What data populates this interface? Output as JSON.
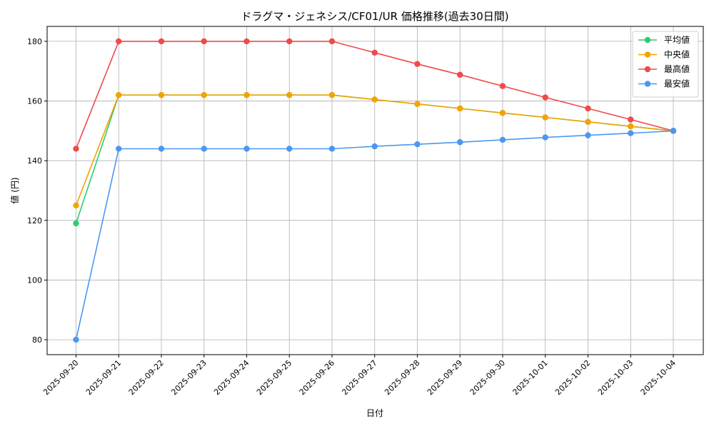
{
  "chart_data": {
    "type": "line",
    "title": "ドラグマ・ジェネシス/CF01/UR 価格推移(過去30日間)",
    "xlabel": "日付",
    "ylabel": "値 (円)",
    "ylim": [
      75,
      185
    ],
    "yticks": [
      80,
      100,
      120,
      140,
      160,
      180
    ],
    "grid": true,
    "legend_position": "top-right",
    "categories": [
      "2025-09-20",
      "2025-09-21",
      "2025-09-22",
      "2025-09-23",
      "2025-09-24",
      "2025-09-25",
      "2025-09-26",
      "2025-09-27",
      "2025-09-28",
      "2025-09-29",
      "2025-09-30",
      "2025-10-01",
      "2025-10-02",
      "2025-10-03",
      "2025-10-04"
    ],
    "series": [
      {
        "name": "平均値",
        "color": "#2ecc71",
        "values": [
          119,
          162,
          162,
          162,
          162,
          162,
          162,
          160.5,
          159,
          157.5,
          156,
          154.5,
          153,
          151.5,
          150
        ]
      },
      {
        "name": "中央値",
        "color": "#f5a300",
        "values": [
          125,
          162,
          162,
          162,
          162,
          162,
          162,
          160.5,
          159,
          157.5,
          156,
          154.5,
          153,
          151.5,
          150
        ]
      },
      {
        "name": "最高値",
        "color": "#f04a4a",
        "values": [
          144,
          180,
          180,
          180,
          180,
          180,
          180,
          176.2,
          172.4,
          168.8,
          165,
          161.2,
          157.5,
          153.8,
          150
        ]
      },
      {
        "name": "最安値",
        "color": "#4a98f0",
        "values": [
          80,
          144,
          144,
          144,
          144,
          144,
          144,
          144.8,
          145.5,
          146.2,
          147,
          147.8,
          148.5,
          149.2,
          150
        ]
      }
    ]
  }
}
